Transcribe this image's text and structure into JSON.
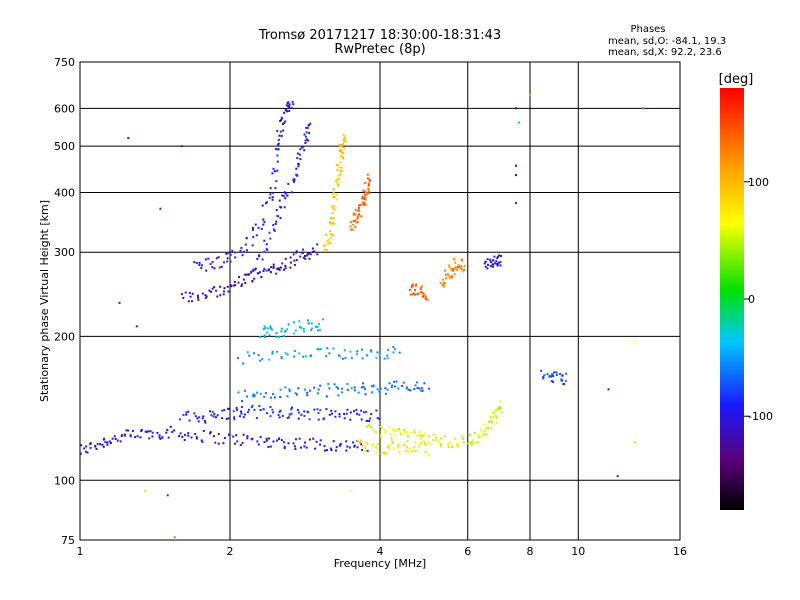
{
  "chart_data": {
    "type": "scatter",
    "title": "Tromsø 20171217 18:30:00-18:31:43",
    "subtitle": "RwPretec (8p)",
    "stats": {
      "heading": "Phases",
      "line1": "mean, sd,O: -84.1, 19.3",
      "line2": "mean, sd,X:  92.2, 23.6"
    },
    "xlabel": "Frequency [MHz]",
    "ylabel": "Stationary phase Virtual Height [km]",
    "xscale": "log",
    "yscale": "log",
    "xlim": [
      1,
      16
    ],
    "ylim": [
      75,
      750
    ],
    "xticks": [
      1,
      2,
      4,
      6,
      8,
      10,
      16
    ],
    "xtick_labels": [
      "1",
      "2",
      "4",
      "6",
      "8",
      "10",
      "16"
    ],
    "xgrid": [
      2,
      4,
      6,
      8,
      10
    ],
    "yticks": [
      75,
      100,
      200,
      300,
      400,
      500,
      600,
      750
    ],
    "ytick_labels": [
      "75",
      "100",
      "200",
      "300",
      "400",
      "500",
      "600",
      "750"
    ],
    "ygrid": [
      100,
      200,
      300,
      400,
      500,
      600
    ],
    "grid": true,
    "colorbar": {
      "label": "[deg]",
      "range": [
        -180,
        180
      ],
      "ticks": [
        100,
        0,
        -100
      ],
      "tick_labels": [
        "100",
        "0",
        "-100"
      ],
      "colormap": "rainbow (black-purple-blue-cyan-green-yellow-red)"
    },
    "traces": [
      {
        "name": "",
        "phase": -110,
        "points": [
          [
            1.0,
            115
          ],
          [
            1.1,
            120
          ],
          [
            1.2,
            123
          ],
          [
            1.35,
            125
          ],
          [
            1.5,
            126
          ],
          [
            1.7,
            124
          ],
          [
            2.0,
            122
          ],
          [
            2.3,
            121
          ],
          [
            2.6,
            120
          ],
          [
            3.0,
            119
          ],
          [
            3.4,
            118
          ],
          [
            3.8,
            117
          ]
        ]
      },
      {
        "name": "",
        "phase": -95,
        "points": [
          [
            1.6,
            135
          ],
          [
            1.8,
            136
          ],
          [
            2.0,
            138
          ],
          [
            2.2,
            139
          ],
          [
            2.5,
            139
          ],
          [
            2.8,
            138
          ],
          [
            3.2,
            138
          ],
          [
            3.6,
            137
          ],
          [
            4.0,
            137
          ]
        ]
      },
      {
        "name": "",
        "phase": -70,
        "points": [
          [
            2.1,
            150
          ],
          [
            2.5,
            152
          ],
          [
            3.0,
            154
          ],
          [
            3.5,
            155
          ],
          [
            4.0,
            156
          ],
          [
            4.5,
            157
          ],
          [
            5.0,
            156
          ]
        ]
      },
      {
        "name": "",
        "phase": -55,
        "points": [
          [
            2.1,
            180
          ],
          [
            2.6,
            182
          ],
          [
            3.2,
            184
          ],
          [
            3.8,
            185
          ],
          [
            4.4,
            185
          ]
        ]
      },
      {
        "name": "",
        "phase": -45,
        "points": [
          [
            2.3,
            205
          ],
          [
            2.5,
            205
          ],
          [
            2.8,
            210
          ],
          [
            3.1,
            211
          ]
        ]
      },
      {
        "name": "",
        "phase": 50,
        "points": [
          [
            3.8,
            127
          ],
          [
            4.2,
            126
          ],
          [
            4.6,
            124
          ],
          [
            5.0,
            122
          ],
          [
            5.5,
            120
          ],
          [
            6.0,
            121
          ],
          [
            6.4,
            125
          ],
          [
            6.8,
            135
          ],
          [
            7.0,
            145
          ]
        ]
      },
      {
        "name": "",
        "phase": 80,
        "points": [
          [
            3.6,
            118
          ],
          [
            4.0,
            117
          ],
          [
            4.5,
            117
          ],
          [
            5.0,
            116
          ]
        ]
      },
      {
        "name": "",
        "phase": -115,
        "points": [
          [
            1.6,
            240
          ],
          [
            1.8,
            245
          ],
          [
            2.0,
            255
          ],
          [
            2.2,
            265
          ],
          [
            2.4,
            275
          ],
          [
            2.6,
            285
          ],
          [
            2.8,
            295
          ],
          [
            3.0,
            305
          ]
        ]
      },
      {
        "name": "",
        "phase": -105,
        "points": [
          [
            1.7,
            280
          ],
          [
            1.9,
            285
          ],
          [
            2.1,
            300
          ],
          [
            2.3,
            340
          ],
          [
            2.45,
            420
          ],
          [
            2.5,
            520
          ],
          [
            2.6,
            580
          ],
          [
            2.65,
            630
          ]
        ]
      },
      {
        "name": "",
        "phase": -100,
        "points": [
          [
            2.2,
            270
          ],
          [
            2.4,
            320
          ],
          [
            2.55,
            380
          ],
          [
            2.7,
            430
          ],
          [
            2.8,
            500
          ],
          [
            2.9,
            560
          ]
        ]
      },
      {
        "name": "",
        "phase": 95,
        "points": [
          [
            3.1,
            300
          ],
          [
            3.2,
            340
          ],
          [
            3.25,
            390
          ],
          [
            3.3,
            440
          ],
          [
            3.35,
            490
          ],
          [
            3.4,
            520
          ]
        ]
      },
      {
        "name": "",
        "phase": 140,
        "points": [
          [
            3.5,
            340
          ],
          [
            3.6,
            360
          ],
          [
            3.7,
            380
          ],
          [
            3.75,
            400
          ],
          [
            3.8,
            430
          ]
        ]
      },
      {
        "name": "",
        "phase": 130,
        "points": [
          [
            5.3,
            255
          ],
          [
            5.5,
            270
          ],
          [
            5.7,
            285
          ],
          [
            5.9,
            280
          ]
        ]
      },
      {
        "name": "",
        "phase": 140,
        "points": [
          [
            4.6,
            250
          ],
          [
            4.8,
            250
          ],
          [
            5.0,
            245
          ]
        ]
      },
      {
        "name": "",
        "phase": -110,
        "points": [
          [
            6.5,
            280
          ],
          [
            6.8,
            285
          ],
          [
            7.0,
            290
          ]
        ]
      },
      {
        "name": "",
        "phase": -85,
        "points": [
          [
            8.5,
            165
          ],
          [
            9.0,
            165
          ],
          [
            9.5,
            163
          ]
        ]
      }
    ],
    "isolated_points": [
      {
        "x": 1.25,
        "y": 520,
        "phase": -105
      },
      {
        "x": 1.6,
        "y": 500,
        "phase": -110
      },
      {
        "x": 7.5,
        "y": 600,
        "phase": -115
      },
      {
        "x": 7.6,
        "y": 560,
        "phase": -10
      },
      {
        "x": 7.5,
        "y": 455,
        "phase": -115
      },
      {
        "x": 7.5,
        "y": 435,
        "phase": -115
      },
      {
        "x": 8.0,
        "y": 640,
        "phase": 120
      },
      {
        "x": 13.5,
        "y": 600,
        "phase": 150
      },
      {
        "x": 7.5,
        "y": 380,
        "phase": -110
      },
      {
        "x": 12.0,
        "y": 102,
        "phase": -110
      },
      {
        "x": 13.0,
        "y": 120,
        "phase": 90
      },
      {
        "x": 13.0,
        "y": 195,
        "phase": 60
      },
      {
        "x": 11.5,
        "y": 155,
        "phase": -115
      },
      {
        "x": 1.35,
        "y": 95,
        "phase": 50
      },
      {
        "x": 1.5,
        "y": 93,
        "phase": -90
      },
      {
        "x": 1.55,
        "y": 76,
        "phase": 140
      },
      {
        "x": 3.5,
        "y": 95,
        "phase": 60
      },
      {
        "x": 1.2,
        "y": 235,
        "phase": -110
      },
      {
        "x": 1.3,
        "y": 210,
        "phase": -100
      },
      {
        "x": 1.45,
        "y": 370,
        "phase": -115
      }
    ]
  }
}
